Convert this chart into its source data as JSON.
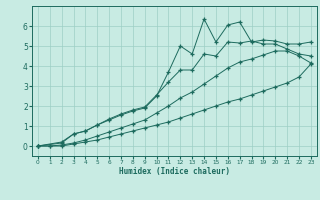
{
  "xlabel": "Humidex (Indice chaleur)",
  "xlim": [
    -0.5,
    23.5
  ],
  "ylim": [
    -0.5,
    7.0
  ],
  "xticks": [
    0,
    1,
    2,
    3,
    4,
    5,
    6,
    7,
    8,
    9,
    10,
    11,
    12,
    13,
    14,
    15,
    16,
    17,
    18,
    19,
    20,
    21,
    22,
    23
  ],
  "yticks": [
    0,
    1,
    2,
    3,
    4,
    5,
    6
  ],
  "bg_color": "#c8ebe3",
  "grid_color": "#9dcfc5",
  "line_color": "#1d6b5e",
  "figsize": [
    3.2,
    2.0
  ],
  "dpi": 100,
  "line1_x": [
    0,
    1,
    2,
    3,
    4,
    5,
    6,
    7,
    8,
    9,
    10,
    11,
    12,
    13,
    14,
    15,
    16,
    17,
    18,
    19,
    20,
    21,
    22,
    23
  ],
  "line1_y": [
    0,
    0,
    0,
    0.1,
    0.2,
    0.3,
    0.45,
    0.6,
    0.75,
    0.9,
    1.05,
    1.2,
    1.4,
    1.6,
    1.8,
    2.0,
    2.2,
    2.35,
    2.55,
    2.75,
    2.95,
    3.15,
    3.45,
    4.1
  ],
  "line2_x": [
    0,
    1,
    2,
    3,
    4,
    5,
    6,
    7,
    8,
    9,
    10,
    11,
    12,
    13,
    14,
    15,
    16,
    17,
    18,
    19,
    20,
    21,
    22,
    23
  ],
  "line2_y": [
    0,
    0,
    0.05,
    0.15,
    0.3,
    0.5,
    0.7,
    0.9,
    1.1,
    1.3,
    1.65,
    2.0,
    2.4,
    2.7,
    3.1,
    3.5,
    3.9,
    4.2,
    4.35,
    4.55,
    4.75,
    4.75,
    4.5,
    4.15
  ],
  "line3_x": [
    0,
    2,
    3,
    4,
    5,
    6,
    7,
    8,
    9,
    10,
    11,
    12,
    13,
    14,
    15,
    16,
    17,
    18,
    19,
    20,
    21,
    22,
    23
  ],
  "line3_y": [
    0,
    0.2,
    0.6,
    0.75,
    1.05,
    1.35,
    1.6,
    1.8,
    1.95,
    2.55,
    3.2,
    3.8,
    3.8,
    4.6,
    4.5,
    5.2,
    5.15,
    5.25,
    5.1,
    5.1,
    4.85,
    4.6,
    4.5
  ],
  "line4_x": [
    0,
    2,
    3,
    4,
    5,
    6,
    7,
    8,
    9,
    10,
    11,
    12,
    13,
    14,
    15,
    16,
    17,
    18,
    19,
    20,
    21,
    22,
    23
  ],
  "line4_y": [
    0,
    0.15,
    0.6,
    0.75,
    1.05,
    1.3,
    1.55,
    1.75,
    1.9,
    2.5,
    3.7,
    5.0,
    4.6,
    6.35,
    5.2,
    6.05,
    6.2,
    5.2,
    5.3,
    5.25,
    5.1,
    5.1,
    5.2
  ]
}
